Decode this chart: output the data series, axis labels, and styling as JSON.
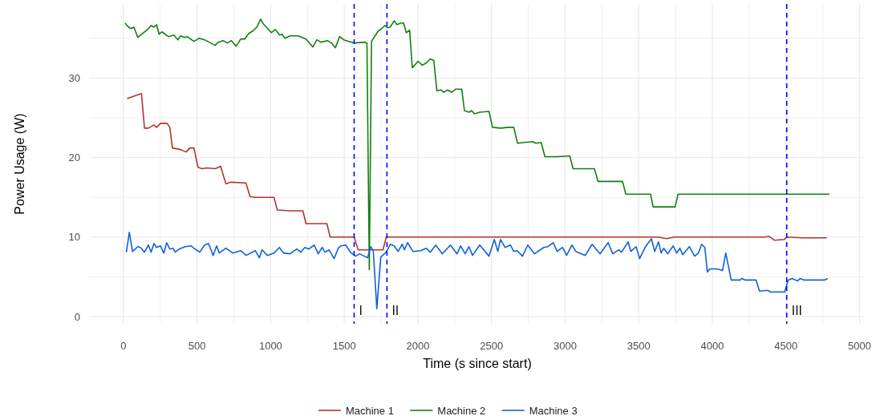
{
  "chart_data": {
    "type": "line",
    "xlabel": "Time (s since start)",
    "ylabel": "Power Usage (W)",
    "xlim": [
      -228,
      5035
    ],
    "ylim": [
      -0.9,
      39.3
    ],
    "xticks": [
      0,
      {
        "value": 250,
        "label": null
      },
      500,
      {
        "value": 750,
        "label": null
      },
      1000,
      {
        "value": 1250,
        "label": null
      },
      1500,
      {
        "value": 1750,
        "label": null
      },
      2000,
      {
        "value": 2250,
        "label": null
      },
      2500,
      {
        "value": 2750,
        "label": null
      },
      3000,
      {
        "value": 3250,
        "label": null
      },
      3500,
      {
        "value": 3750,
        "label": null
      },
      4000,
      {
        "value": 4250,
        "label": null
      },
      4500,
      {
        "value": 4750,
        "label": null
      },
      5000
    ],
    "yticks": [
      0,
      {
        "value": 5,
        "label": null
      },
      10,
      {
        "value": 15,
        "label": null
      },
      20,
      {
        "value": 25,
        "label": null
      },
      30,
      {
        "value": 35,
        "label": null
      }
    ],
    "grid": true,
    "legend": "bottom",
    "line_style": "solid",
    "marker": "none",
    "ref_lines": [
      {
        "axis": "x",
        "value": 1567,
        "label": "I",
        "color": "#0000ff",
        "line_style": "dashed"
      },
      {
        "axis": "x",
        "value": 1790,
        "label": "II",
        "color": "#0000ff",
        "line_style": "dashed"
      },
      {
        "axis": "x",
        "value": 4505,
        "label": "III",
        "color": "#0000ff",
        "line_style": "dashed"
      }
    ],
    "series": [
      {
        "name": "Machine 1",
        "color": "#b2352a",
        "x": [
          25,
          114,
          123,
          143,
          170,
          207,
          225,
          252,
          297,
          315,
          333,
          388,
          425,
          452,
          479,
          506,
          533,
          569,
          623,
          660,
          696,
          732,
          832,
          860,
          895,
          1023,
          1045,
          1132,
          1219,
          1240,
          1382,
          1404,
          1567,
          1594,
          1763,
          1785,
          3634,
          3689,
          3744,
          4360,
          4385,
          4423,
          4487,
          4505,
          4613,
          4777
        ],
        "values": [
          27.4,
          28.0,
          28.0,
          23.7,
          23.7,
          24.1,
          23.8,
          24.3,
          24.3,
          23.8,
          21.2,
          21.0,
          20.7,
          21.2,
          21.2,
          18.8,
          18.6,
          18.7,
          18.6,
          18.9,
          16.7,
          16.9,
          16.8,
          15.1,
          15.0,
          15.0,
          13.4,
          13.3,
          13.3,
          11.7,
          11.7,
          10.0,
          10.0,
          8.4,
          8.4,
          10.0,
          10.0,
          9.8,
          10.0,
          10.0,
          10.1,
          9.6,
          9.7,
          10.0,
          9.9,
          9.9
        ]
      },
      {
        "name": "Machine 2",
        "color": "#11800f",
        "x": [
          11,
          34,
          53,
          71,
          98,
          170,
          188,
          207,
          225,
          243,
          261,
          306,
          343,
          370,
          388,
          415,
          433,
          479,
          515,
          551,
          624,
          642,
          678,
          706,
          733,
          766,
          797,
          824,
          851,
          878,
          906,
          932,
          950,
          1005,
          1032,
          1060,
          1078,
          1096,
          1132,
          1187,
          1240,
          1286,
          1314,
          1341,
          1386,
          1414,
          1440,
          1468,
          1496,
          1532,
          1567,
          1640,
          1654,
          1670,
          1685,
          1730,
          1748,
          1776,
          1794,
          1812,
          1839,
          1857,
          1885,
          1903,
          1921,
          1944,
          1962,
          2002,
          2030,
          2057,
          2084,
          2108,
          2129,
          2157,
          2175,
          2202,
          2229,
          2257,
          2298,
          2316,
          2347,
          2365,
          2384,
          2420,
          2483,
          2507,
          2565,
          2611,
          2651,
          2677,
          2719,
          2782,
          2800,
          2837,
          2863,
          2945,
          3032,
          3054,
          3199,
          3223,
          3390,
          3412,
          3580,
          3598,
          3747,
          3767,
          4795
        ],
        "values": [
          36.9,
          36.4,
          36.2,
          36.4,
          35.1,
          36.2,
          36.6,
          36.4,
          36.7,
          35.5,
          35.8,
          35.2,
          35.4,
          34.8,
          35.3,
          35.1,
          35.2,
          34.6,
          35.0,
          34.8,
          34.1,
          34.5,
          34.7,
          34.4,
          34.7,
          34.0,
          34.9,
          34.9,
          35.6,
          35.9,
          36.4,
          37.4,
          36.8,
          35.7,
          36.1,
          35.4,
          35.5,
          35.0,
          35.3,
          35.3,
          34.9,
          33.9,
          34.8,
          34.5,
          34.7,
          34.4,
          33.8,
          35.2,
          34.8,
          34.6,
          34.4,
          34.5,
          34.4,
          5.9,
          34.6,
          35.9,
          36.1,
          36.6,
          36.3,
          36.4,
          37.2,
          36.7,
          36.9,
          36.9,
          35.7,
          36.0,
          31.3,
          32.1,
          31.6,
          31.9,
          32.4,
          32.2,
          28.4,
          28.5,
          28.2,
          28.5,
          28.2,
          28.6,
          28.6,
          25.9,
          25.7,
          25.9,
          25.5,
          25.7,
          25.8,
          23.8,
          23.7,
          23.8,
          23.8,
          21.8,
          21.9,
          22.0,
          21.8,
          21.9,
          20.1,
          20.1,
          20.2,
          18.6,
          18.6,
          17.0,
          17.0,
          15.4,
          15.4,
          13.8,
          13.8,
          15.4,
          15.4
        ]
      },
      {
        "name": "Machine 3",
        "color": "#0f62d6",
        "x": [
          20,
          40,
          62,
          98,
          116,
          143,
          170,
          188,
          207,
          225,
          252,
          274,
          294,
          315,
          337,
          352,
          379,
          419,
          460,
          478,
          519,
          551,
          578,
          609,
          633,
          651,
          696,
          742,
          797,
          833,
          896,
          923,
          942,
          978,
          1023,
          1060,
          1087,
          1132,
          1178,
          1205,
          1232,
          1260,
          1296,
          1323,
          1350,
          1369,
          1396,
          1431,
          1459,
          1477,
          1510,
          1541,
          1577,
          1604,
          1658,
          1679,
          1697,
          1721,
          1748,
          1785,
          1812,
          1839,
          1866,
          1894,
          1908,
          1930,
          1966,
          2021,
          2057,
          2084,
          2121,
          2166,
          2221,
          2266,
          2290,
          2321,
          2347,
          2371,
          2420,
          2483,
          2519,
          2543,
          2561,
          2592,
          2628,
          2651,
          2674,
          2710,
          2746,
          2792,
          2855,
          2883,
          2919,
          2946,
          2982,
          3010,
          3046,
          3073,
          3137,
          3183,
          3237,
          3292,
          3324,
          3364,
          3383,
          3428,
          3446,
          3482,
          3506,
          3546,
          3586,
          3608,
          3634,
          3652,
          3670,
          3697,
          3734,
          3757,
          3780,
          3798,
          3844,
          3880,
          3905,
          3927,
          3949,
          3966,
          3982,
          4033,
          4069,
          4091,
          4128,
          4188,
          4201,
          4224,
          4297,
          4320,
          4378,
          4396,
          4491,
          4515,
          4542,
          4579,
          4597,
          4624,
          4724,
          4763,
          4783
        ],
        "values": [
          8.1,
          10.6,
          8.2,
          8.8,
          8.7,
          8.1,
          9.0,
          8.1,
          9.2,
          8.7,
          8.9,
          8.0,
          9.3,
          8.5,
          8.6,
          8.1,
          8.5,
          8.8,
          8.9,
          8.6,
          8.1,
          9.0,
          9.2,
          7.7,
          8.9,
          8.0,
          8.6,
          8.0,
          8.3,
          7.7,
          8.3,
          7.4,
          8.4,
          7.7,
          8.0,
          8.7,
          8.0,
          7.9,
          8.5,
          8.1,
          8.7,
          8.5,
          9.0,
          7.9,
          8.7,
          8.1,
          8.4,
          7.3,
          8.6,
          8.9,
          9.0,
          8.1,
          7.6,
          7.9,
          7.4,
          8.8,
          8.3,
          1.0,
          7.5,
          8.1,
          9.1,
          8.9,
          8.2,
          9.1,
          8.4,
          9.3,
          8.2,
          8.3,
          8.6,
          8.1,
          9.0,
          7.9,
          9.0,
          7.9,
          8.9,
          7.9,
          8.8,
          7.7,
          9.0,
          7.6,
          9.7,
          8.2,
          9.7,
          8.7,
          9.0,
          8.2,
          8.3,
          7.6,
          9.0,
          7.9,
          8.7,
          8.8,
          9.3,
          8.2,
          8.7,
          7.7,
          9.0,
          8.2,
          7.7,
          9.1,
          7.9,
          9.3,
          7.9,
          8.4,
          8.1,
          9.4,
          8.2,
          8.8,
          7.3,
          8.8,
          9.8,
          8.2,
          9.4,
          8.0,
          8.6,
          7.9,
          8.9,
          8.0,
          8.6,
          7.8,
          8.8,
          7.6,
          8.0,
          9.1,
          8.7,
          5.6,
          6.0,
          6.0,
          5.8,
          8.0,
          4.6,
          4.6,
          4.8,
          4.6,
          4.6,
          3.2,
          3.3,
          3.1,
          3.1,
          4.6,
          4.8,
          4.5,
          4.8,
          4.6,
          4.6,
          4.6,
          4.8
        ]
      }
    ]
  }
}
